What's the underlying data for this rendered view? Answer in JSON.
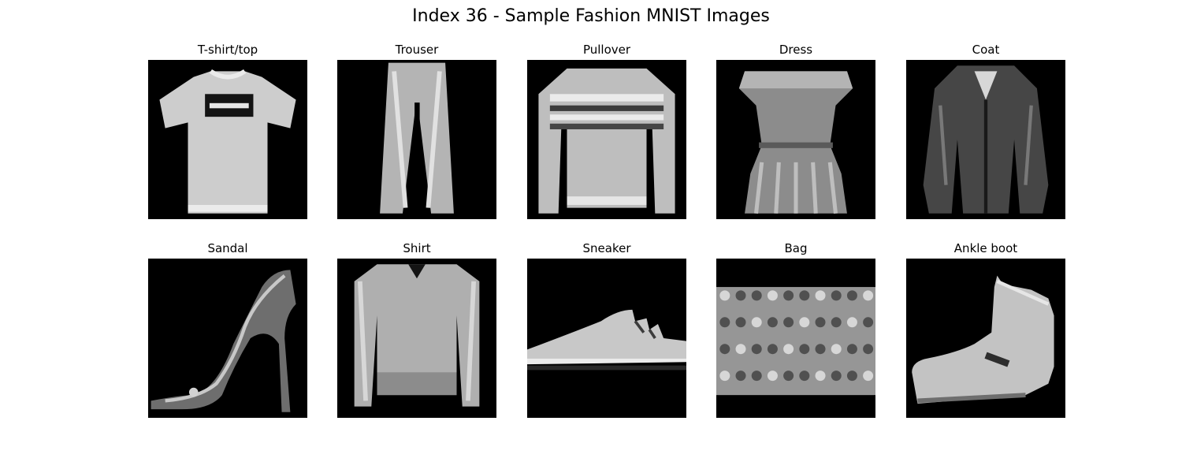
{
  "figure": {
    "title": "Index 36 - Sample Fashion MNIST Images"
  },
  "panels": [
    {
      "label": "T-shirt/top",
      "item": "tshirt"
    },
    {
      "label": "Trouser",
      "item": "trouser"
    },
    {
      "label": "Pullover",
      "item": "pullover"
    },
    {
      "label": "Dress",
      "item": "dress"
    },
    {
      "label": "Coat",
      "item": "coat"
    },
    {
      "label": "Sandal",
      "item": "sandal"
    },
    {
      "label": "Shirt",
      "item": "shirt"
    },
    {
      "label": "Sneaker",
      "item": "sneaker"
    },
    {
      "label": "Bag",
      "item": "bag"
    },
    {
      "label": "Ankle boot",
      "item": "ankle-boot"
    }
  ],
  "colors": {
    "background": "#ffffff",
    "image_background": "#000000",
    "image_foreground": "#cfcfcf"
  }
}
